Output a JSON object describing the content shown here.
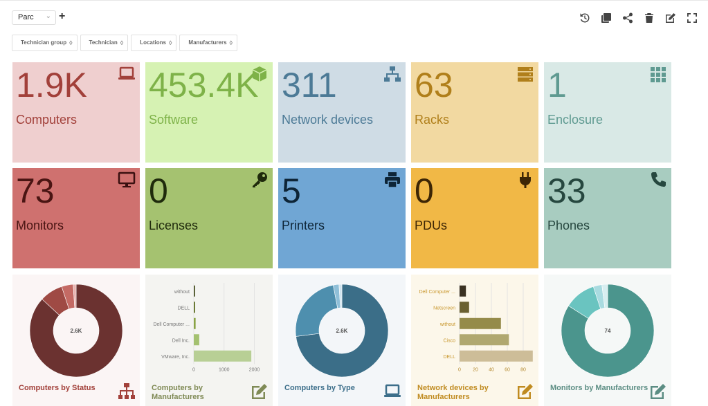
{
  "header": {
    "dashboard_select": "Parc",
    "add_label": "+"
  },
  "filters": [
    "Technician group",
    "Technician",
    "Locations",
    "Manufacturers"
  ],
  "toolbar": [
    "history-icon",
    "clone-icon",
    "share-icon",
    "delete-icon",
    "edit-icon",
    "fullscreen-icon"
  ],
  "cards": [
    {
      "value": "1.9K",
      "label": "Computers",
      "icon": "laptop-icon",
      "bg": "#efcfcf",
      "fg": "#a2403a",
      "ic": "#a2403a"
    },
    {
      "value": "453.4K",
      "label": "Software",
      "icon": "cube-icon",
      "bg": "#d6f2b3",
      "fg": "#7eb248",
      "ic": "#7eb248"
    },
    {
      "value": "311",
      "label": "Network devices",
      "icon": "network-icon",
      "bg": "#cfdce5",
      "fg": "#4c7a96",
      "ic": "#4c7a96"
    },
    {
      "value": "63",
      "label": "Racks",
      "icon": "server-icon",
      "bg": "#f2d9a1",
      "fg": "#b07f1a",
      "ic": "#b07f1a"
    },
    {
      "value": "1",
      "label": "Enclosure",
      "icon": "grid-icon",
      "bg": "#d9e9e6",
      "fg": "#5f9a91",
      "ic": "#5f9a91"
    },
    {
      "value": "73",
      "label": "Monitors",
      "icon": "monitor-icon",
      "bg": "#cf716f",
      "fg": "#4a1513",
      "ic": "#3a1010"
    },
    {
      "value": "0",
      "label": "Licenses",
      "icon": "key-icon",
      "bg": "#a5c270",
      "fg": "#1f2a0c",
      "ic": "#1f2a0c"
    },
    {
      "value": "5",
      "label": "Printers",
      "icon": "printer-icon",
      "bg": "#70a6d4",
      "fg": "#0e2537",
      "ic": "#0e2537"
    },
    {
      "value": "0",
      "label": "PDUs",
      "icon": "plug-icon",
      "bg": "#f1b846",
      "fg": "#3d2605",
      "ic": "#3d2605"
    },
    {
      "value": "33",
      "label": "Phones",
      "icon": "phone-icon",
      "bg": "#a8ccc0",
      "fg": "#26473f",
      "ic": "#26473f"
    }
  ],
  "panels": [
    {
      "title": "Computers by Status",
      "icon": "sitemap-icon",
      "bg": "#fbf5f5",
      "fg": "#a2403a"
    },
    {
      "title": "Computers by Manufacturers",
      "icon": "edit-icon",
      "bg": "#f4f4f1",
      "fg": "#7f8a55"
    },
    {
      "title": "Computers by Type",
      "icon": "laptop-icon",
      "bg": "#f3f6f9",
      "fg": "#3c6e8a"
    },
    {
      "title": "Network devices by Manufacturers",
      "icon": "edit-icon",
      "bg": "#fcf7ea",
      "fg": "#c08b20"
    },
    {
      "title": "Monitors by Manufacturers",
      "icon": "edit-icon",
      "bg": "#f5f8f7",
      "fg": "#5b8d83"
    }
  ],
  "chart_data": [
    {
      "type": "pie",
      "center_label": "2.6K",
      "colors": [
        "#6b3230",
        "#9f4a44",
        "#c46a64",
        "#e8b4b0"
      ],
      "values": [
        86,
        8,
        4,
        1
      ]
    },
    {
      "type": "bar",
      "categories": [
        "without",
        "DELL",
        "Dell Computer ...",
        "Dell Inc.",
        "VMware, Inc."
      ],
      "values": [
        20,
        40,
        60,
        180,
        1900
      ],
      "colors": [
        "#5a6238",
        "#6b7a35",
        "#8aa445",
        "#a4c170",
        "#b8cf95"
      ],
      "xticks": [
        "0",
        "1000",
        "2000"
      ],
      "xlim": [
        0,
        2400
      ]
    },
    {
      "type": "pie",
      "center_label": "2.6K",
      "colors": [
        "#3b6e88",
        "#4e8fae",
        "#8fbfd8",
        "#cfe3ee"
      ],
      "values": [
        73,
        24,
        2,
        1
      ]
    },
    {
      "type": "bar",
      "categories": [
        "Dell Computer ...",
        "Netscreen",
        "without",
        "Cisco",
        "DELL"
      ],
      "values": [
        8,
        12,
        52,
        62,
        92
      ],
      "colors": [
        "#3b3222",
        "#6a6030",
        "#958b4a",
        "#b0a870",
        "#cdbd98"
      ],
      "xticks": [
        "0",
        "20",
        "40",
        "60",
        "80"
      ],
      "xlim": [
        0,
        100
      ]
    },
    {
      "type": "pie",
      "center_label": "74",
      "colors": [
        "#4b958d",
        "#6ac4c0",
        "#a9dbe0",
        "#d7eef0"
      ],
      "values": [
        84,
        11,
        3,
        2
      ]
    }
  ]
}
